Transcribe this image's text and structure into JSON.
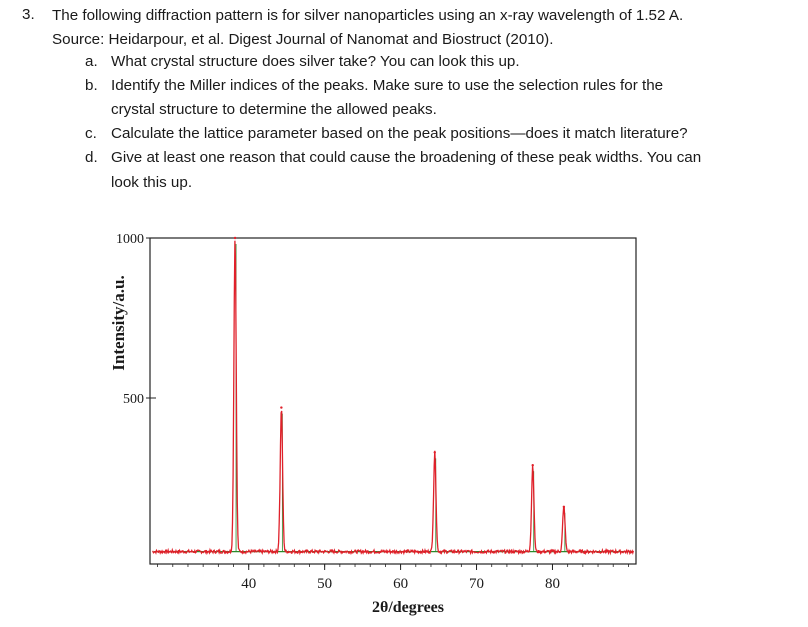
{
  "question": {
    "number": "3.",
    "intro_lines": [
      "The following diffraction pattern is for silver nanoparticles using an x-ray wavelength of 1.52 A.",
      "Source: Heidarpour, et al. Digest Journal of Nanomat and Biostruct (2010)."
    ],
    "parts": [
      {
        "marker": "a.",
        "lines": [
          "What crystal structure does silver take? You can look this up."
        ]
      },
      {
        "marker": "b.",
        "lines": [
          "Identify the Miller indices of the peaks. Make sure to use the selection rules for the",
          "crystal structure to determine the allowed peaks."
        ]
      },
      {
        "marker": "c.",
        "lines": [
          "Calculate the lattice parameter based on the peak positions—does it match literature?"
        ]
      },
      {
        "marker": "d.",
        "lines": [
          "Give at least one reason that could cause the broadening of these peak widths. You can",
          "look this up."
        ]
      }
    ]
  },
  "chart_data": {
    "type": "line",
    "xlabel": "2θ/degrees",
    "ylabel": "Intensity/a.u.",
    "xlim": [
      27,
      91
    ],
    "ylim": [
      0,
      1000
    ],
    "x_ticks": [
      40,
      50,
      60,
      70,
      80
    ],
    "y_ticks": [
      500,
      1000
    ],
    "baseline_level": 20,
    "series": [
      {
        "color": "#e0202a",
        "peaks": [
          {
            "x": 38.2,
            "y": 1000
          },
          {
            "x": 44.3,
            "y": 470
          },
          {
            "x": 64.5,
            "y": 330
          },
          {
            "x": 77.4,
            "y": 290
          },
          {
            "x": 81.5,
            "y": 160
          }
        ]
      }
    ],
    "fit_color": "#2a8a2a",
    "grid": false
  }
}
